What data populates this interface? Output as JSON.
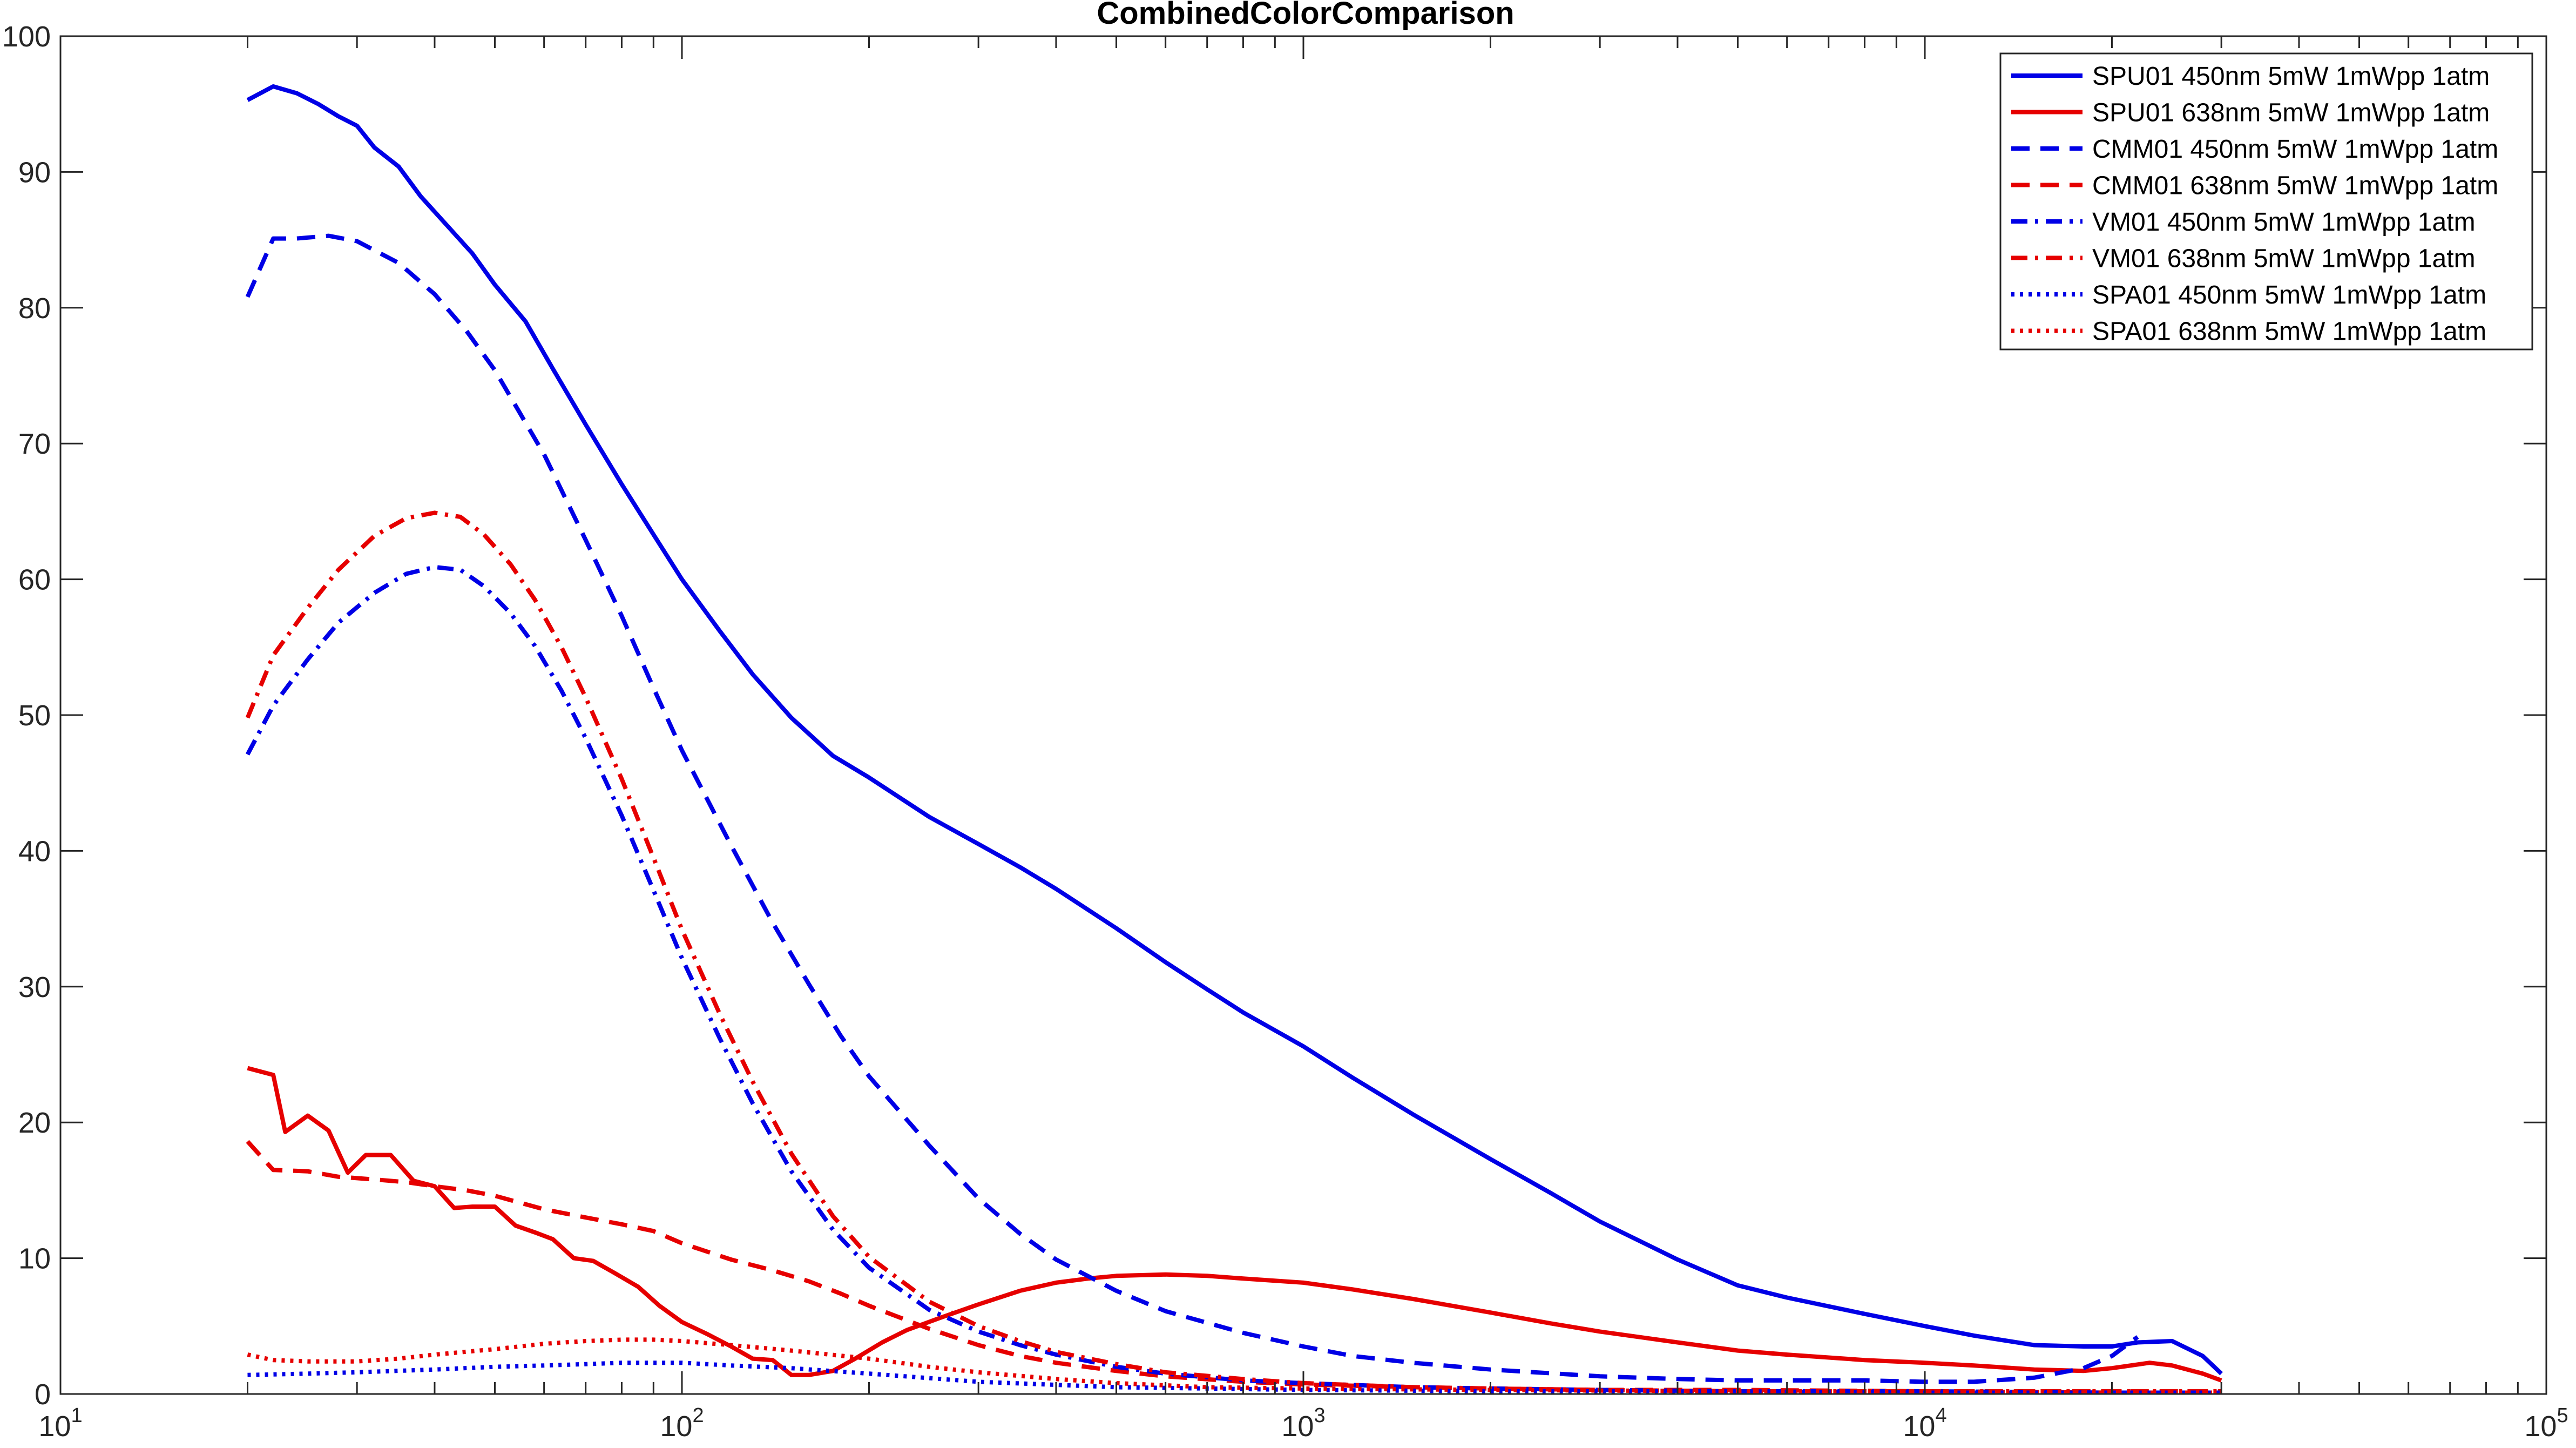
{
  "chart_data": {
    "type": "line",
    "title": "CombinedColorComparison",
    "xlabel": "",
    "ylabel": "",
    "xscale": "log",
    "xlim": [
      10,
      100000
    ],
    "ylim": [
      0,
      100
    ],
    "yticks": [
      0,
      10,
      20,
      30,
      40,
      50,
      60,
      70,
      80,
      90,
      100
    ],
    "ytick_labels": [
      "0",
      "10",
      "20",
      "30",
      "40",
      "50",
      "60",
      "70",
      "80",
      "90",
      "100"
    ],
    "xtick_labels": [
      {
        "base": "10",
        "exp": "1"
      },
      {
        "base": "10",
        "exp": "2"
      },
      {
        "base": "10",
        "exp": "3"
      },
      {
        "base": "10",
        "exp": "4"
      },
      {
        "base": "10",
        "exp": "5"
      }
    ],
    "grid": false,
    "legend_position": "top-right",
    "series": [
      {
        "name": "SPU01 450nm 5mW 1mWpp 1atm",
        "color": "#0000e6",
        "style": "solid",
        "x": [
          20,
          22,
          24,
          26,
          28,
          30,
          32,
          35,
          38,
          42,
          46,
          50,
          56,
          62,
          70,
          80,
          90,
          100,
          115,
          130,
          150,
          175,
          200,
          250,
          300,
          350,
          400,
          500,
          600,
          700,
          800,
          1000,
          1200,
          1500,
          2000,
          2500,
          3000,
          4000,
          5000,
          6000,
          8000,
          10000,
          12000,
          15000,
          18000,
          20000,
          22000,
          25000,
          28000,
          30000
        ],
        "y": [
          95.3,
          96.3,
          95.8,
          95.0,
          94.1,
          93.4,
          91.8,
          90.4,
          88.2,
          86.0,
          84.0,
          81.7,
          79.0,
          75.5,
          71.4,
          67.0,
          63.3,
          60.0,
          56.2,
          53.0,
          49.8,
          47.0,
          45.4,
          42.5,
          40.5,
          38.8,
          37.2,
          34.3,
          31.8,
          29.8,
          28.1,
          25.6,
          23.3,
          20.6,
          17.3,
          14.8,
          12.7,
          9.9,
          8.0,
          7.1,
          5.9,
          5.0,
          4.3,
          3.6,
          3.5,
          3.5,
          3.8,
          3.9,
          2.8,
          1.5
        ]
      },
      {
        "name": "SPU01 638nm 5mW 1mWpp 1atm",
        "color": "#e60000",
        "style": "solid",
        "x": [
          20,
          22,
          23,
          25,
          27,
          29,
          31,
          34,
          37,
          40,
          43,
          46,
          50,
          54,
          58,
          62,
          67,
          72,
          78,
          85,
          92,
          100,
          110,
          120,
          130,
          140,
          150,
          160,
          175,
          190,
          210,
          230,
          260,
          300,
          350,
          400,
          450,
          500,
          600,
          700,
          800,
          1000,
          1200,
          1500,
          2000,
          2500,
          3000,
          4000,
          5000,
          6000,
          8000,
          10000,
          12000,
          15000,
          18000,
          20000,
          23000,
          25000,
          28000,
          30000
        ],
        "y": [
          24.0,
          23.5,
          19.3,
          20.5,
          19.4,
          16.3,
          17.6,
          17.6,
          15.7,
          15.3,
          13.7,
          13.8,
          13.8,
          12.4,
          11.9,
          11.4,
          10.0,
          9.8,
          8.9,
          7.9,
          6.5,
          5.3,
          4.4,
          3.5,
          2.6,
          2.5,
          1.4,
          1.4,
          1.7,
          2.6,
          3.8,
          4.7,
          5.6,
          6.6,
          7.6,
          8.2,
          8.5,
          8.7,
          8.8,
          8.7,
          8.5,
          8.2,
          7.7,
          7.0,
          6.0,
          5.2,
          4.6,
          3.8,
          3.2,
          2.9,
          2.5,
          2.3,
          2.1,
          1.8,
          1.7,
          1.9,
          2.3,
          2.1,
          1.5,
          1.0
        ]
      },
      {
        "name": "CMM01 450nm 5mW 1mWpp 1atm",
        "color": "#0000e6",
        "style": "dashed",
        "x": [
          20,
          22,
          24,
          27,
          30,
          35,
          40,
          45,
          50,
          60,
          70,
          80,
          90,
          100,
          120,
          140,
          160,
          180,
          200,
          250,
          300,
          350,
          400,
          500,
          600,
          800,
          1000,
          1200,
          1500,
          2000,
          3000,
          4000,
          5000,
          6000,
          8000,
          10000,
          12000,
          15000,
          18000,
          20000,
          22000
        ],
        "y": [
          80.8,
          85.1,
          85.1,
          85.3,
          84.9,
          83.3,
          81.0,
          78.3,
          75.4,
          69.2,
          62.9,
          57.3,
          52.0,
          47.4,
          40.4,
          34.7,
          30.2,
          26.4,
          23.4,
          18.3,
          14.4,
          11.8,
          9.9,
          7.6,
          6.1,
          4.5,
          3.5,
          2.8,
          2.3,
          1.8,
          1.3,
          1.1,
          1.0,
          1.0,
          1.0,
          0.9,
          0.9,
          1.2,
          1.9,
          2.8,
          4.2
        ]
      },
      {
        "name": "CMM01 638nm 5mW 1mWpp 1atm",
        "color": "#e60000",
        "style": "dashed",
        "x": [
          20,
          22,
          25,
          28,
          32,
          36,
          40,
          45,
          50,
          60,
          70,
          80,
          90,
          100,
          120,
          140,
          160,
          180,
          200,
          250,
          300,
          350,
          400,
          500,
          600,
          800,
          1000,
          1500,
          2000,
          3000,
          5000,
          10000,
          20000,
          30000
        ],
        "y": [
          18.6,
          16.5,
          16.4,
          16.0,
          15.8,
          15.6,
          15.3,
          15.0,
          14.6,
          13.6,
          13.0,
          12.5,
          12.0,
          11.1,
          9.9,
          9.1,
          8.3,
          7.4,
          6.5,
          4.8,
          3.6,
          2.8,
          2.3,
          1.7,
          1.3,
          0.9,
          0.7,
          0.5,
          0.4,
          0.3,
          0.3,
          0.2,
          0.2,
          0.2
        ]
      },
      {
        "name": "VM01 450nm 5mW 1mWpp 1atm",
        "color": "#0000e6",
        "style": "dashdot",
        "x": [
          20,
          22,
          25,
          28,
          32,
          36,
          40,
          44,
          48,
          53,
          58,
          64,
          70,
          80,
          90,
          100,
          115,
          130,
          150,
          175,
          200,
          250,
          300,
          350,
          400,
          500,
          600,
          800,
          1000,
          1500,
          2000,
          3000,
          5000,
          10000,
          20000,
          30000
        ],
        "y": [
          47.1,
          50.7,
          54.1,
          56.8,
          59.0,
          60.4,
          60.9,
          60.7,
          59.5,
          57.5,
          55.1,
          51.8,
          48.3,
          42.6,
          37.1,
          32.1,
          26.2,
          21.4,
          16.4,
          12.1,
          9.3,
          6.2,
          4.6,
          3.6,
          2.9,
          2.0,
          1.5,
          1.0,
          0.8,
          0.5,
          0.4,
          0.3,
          0.2,
          0.2,
          0.1,
          0.1
        ]
      },
      {
        "name": "VM01 638nm 5mW 1mWpp 1atm",
        "color": "#e60000",
        "style": "dashdot",
        "x": [
          20,
          22,
          25,
          28,
          32,
          36,
          40,
          44,
          48,
          53,
          58,
          64,
          70,
          80,
          90,
          100,
          115,
          130,
          150,
          175,
          200,
          250,
          300,
          350,
          400,
          500,
          600,
          800,
          1000,
          1500,
          2000,
          3000,
          5000,
          10000,
          20000,
          30000
        ],
        "y": [
          49.8,
          54.4,
          57.9,
          60.7,
          63.2,
          64.5,
          64.9,
          64.6,
          63.3,
          61.1,
          58.5,
          55.0,
          51.3,
          45.3,
          39.5,
          34.2,
          28.0,
          23.0,
          17.7,
          13.1,
          10.1,
          6.8,
          5.0,
          3.9,
          3.1,
          2.2,
          1.6,
          1.1,
          0.8,
          0.5,
          0.4,
          0.3,
          0.2,
          0.2,
          0.1,
          0.1
        ]
      },
      {
        "name": "SPA01 450nm 5mW 1mWpp 1atm",
        "color": "#0000e6",
        "style": "dotted",
        "x": [
          20,
          25,
          30,
          40,
          50,
          60,
          70,
          80,
          90,
          100,
          120,
          150,
          200,
          300,
          500,
          1000,
          2000,
          5000,
          10000,
          20000,
          30000
        ],
        "y": [
          1.4,
          1.5,
          1.6,
          1.8,
          2.0,
          2.1,
          2.2,
          2.3,
          2.3,
          2.3,
          2.1,
          1.9,
          1.5,
          0.9,
          0.5,
          0.3,
          0.2,
          0.2,
          0.1,
          0.1,
          0.1
        ]
      },
      {
        "name": "SPA01 638nm 5mW 1mWpp 1atm",
        "color": "#e60000",
        "style": "dotted",
        "x": [
          20,
          22,
          25,
          30,
          35,
          40,
          50,
          60,
          70,
          80,
          90,
          100,
          120,
          150,
          200,
          250,
          300,
          400,
          500,
          700,
          1000,
          2000,
          5000,
          10000,
          20000,
          30000
        ],
        "y": [
          2.9,
          2.5,
          2.4,
          2.4,
          2.6,
          2.9,
          3.3,
          3.7,
          3.9,
          4.0,
          4.0,
          3.9,
          3.6,
          3.2,
          2.6,
          2.0,
          1.6,
          1.1,
          0.8,
          0.5,
          0.4,
          0.3,
          0.2,
          0.2,
          0.2,
          0.2
        ]
      }
    ]
  }
}
